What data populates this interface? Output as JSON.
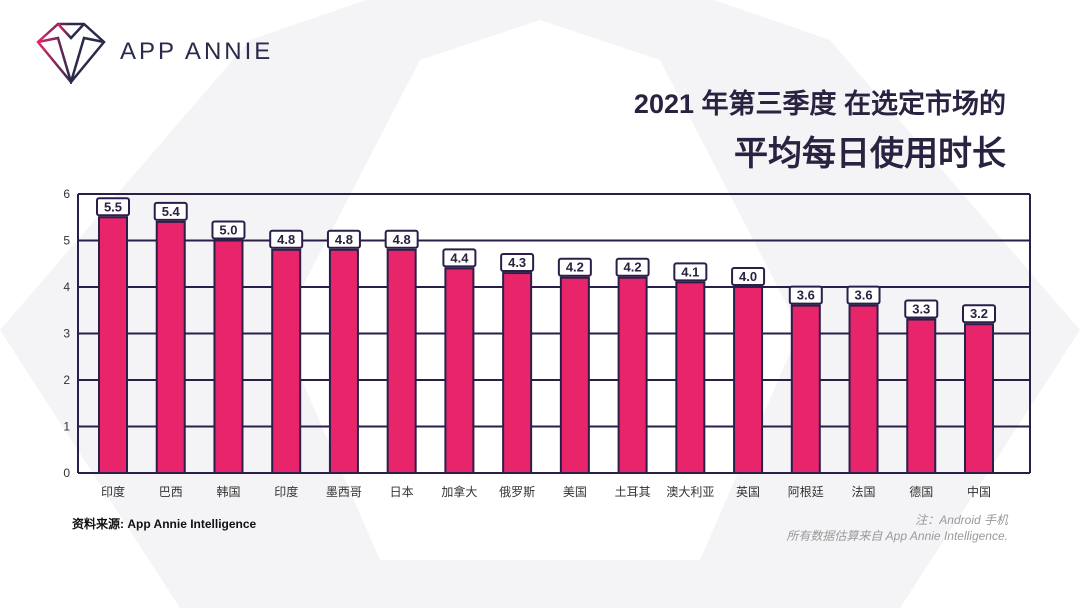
{
  "brand": {
    "name": "APP ANNIE"
  },
  "title": {
    "line1": "2021 年第三季度 在选定市场的",
    "line2": "平均每日使用时长"
  },
  "footer": {
    "source": "资料来源: App Annie Intelligence",
    "note1": "注：Android 手机",
    "note2": "所有数据估算来自 App Annie Intelligence."
  },
  "colors": {
    "bar": "#e8246a",
    "grid": "#2b1f4a",
    "text": "#2a2240"
  },
  "chart_data": {
    "type": "bar",
    "title": "2021 年第三季度 在选定市场的 平均每日使用时长",
    "categories": [
      "印度",
      "巴西",
      "韩国",
      "印度",
      "墨西哥",
      "日本",
      "加拿大",
      "俄罗斯",
      "美国",
      "土耳其",
      "澳大利亚",
      "英国",
      "阿根廷",
      "法国",
      "德国",
      "中国"
    ],
    "values": [
      5.5,
      5.4,
      5.0,
      4.8,
      4.8,
      4.8,
      4.4,
      4.3,
      4.2,
      4.2,
      4.1,
      4.0,
      3.6,
      3.6,
      3.3,
      3.2
    ],
    "value_labels": [
      "5.5",
      "5.4",
      "5.0",
      "4.8",
      "4.8",
      "4.8",
      "4.4",
      "4.3",
      "4.2",
      "4.2",
      "4.1",
      "4.0",
      "3.6",
      "3.6",
      "3.3",
      "3.2"
    ],
    "yticks": [
      "0",
      "1",
      "2",
      "3",
      "4",
      "5",
      "6"
    ],
    "ylim": [
      0,
      6
    ],
    "xlabel": "",
    "ylabel": "",
    "grid": true
  }
}
